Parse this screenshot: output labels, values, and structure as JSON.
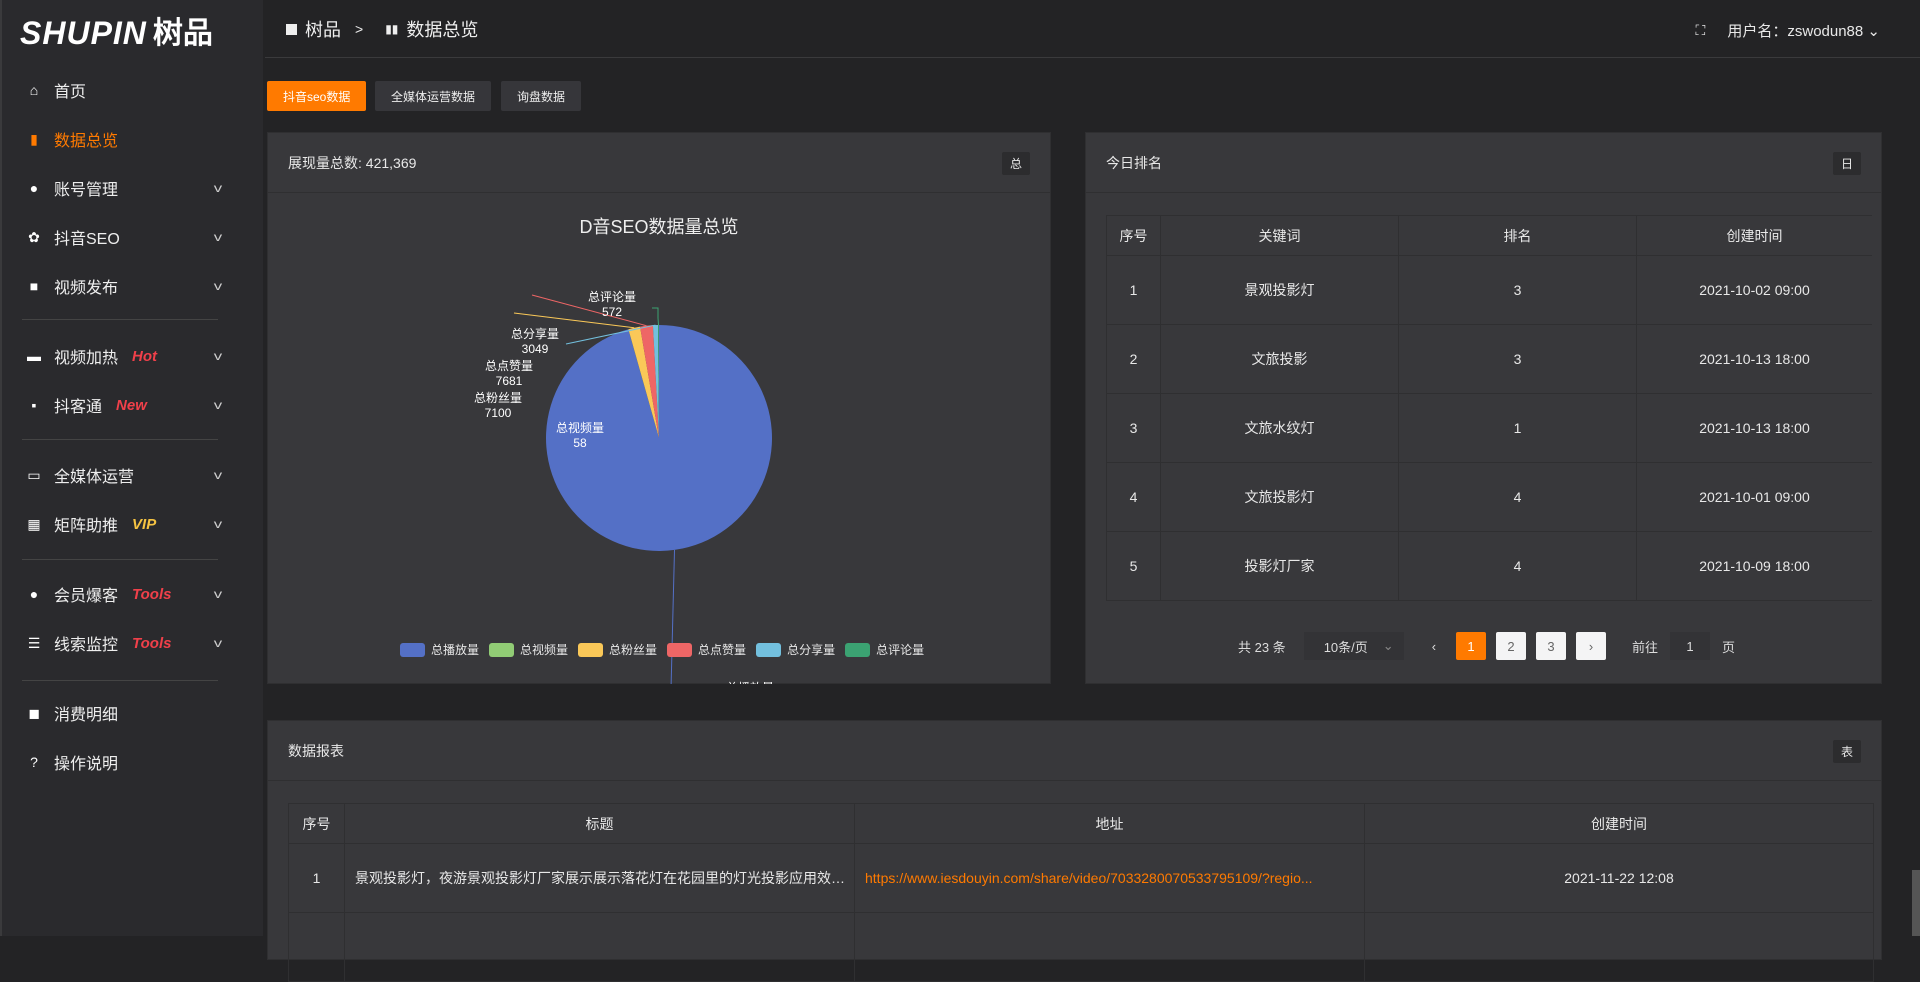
{
  "brand": {
    "logo_en": "SHUPIN",
    "logo_cn": "树品"
  },
  "sidebar": {
    "items": [
      {
        "label": "首页",
        "icon": "home-icon"
      },
      {
        "label": "数据总览",
        "icon": "bar-chart-icon",
        "active": true
      },
      {
        "label": "账号管理",
        "icon": "user-icon",
        "expand": true
      },
      {
        "label": "抖音SEO",
        "icon": "gear-icon",
        "expand": true
      },
      {
        "label": "视频发布",
        "icon": "camera-icon",
        "expand": true
      },
      {
        "label": "视频加热",
        "icon": "screen-icon",
        "badge": "Hot",
        "badge_color": "#f0404a",
        "expand": true
      },
      {
        "label": "抖客通",
        "icon": "chat-icon",
        "badge": "New",
        "badge_color": "#f0404a",
        "expand": true
      },
      {
        "label": "全媒体运营",
        "icon": "monitor-icon",
        "expand": true
      },
      {
        "label": "矩阵助推",
        "icon": "grid-icon",
        "badge": "VIP",
        "badge_color": "#f5c342",
        "expand": true
      },
      {
        "label": "会员爆客",
        "icon": "user-icon",
        "badge": "Tools",
        "badge_color": "#f0404a",
        "expand": true
      },
      {
        "label": "线索监控",
        "icon": "sliders-icon",
        "badge": "Tools",
        "badge_color": "#f0404a",
        "expand": true
      },
      {
        "label": "消费明细",
        "icon": "wallet-icon"
      },
      {
        "label": "操作说明",
        "icon": "help-icon"
      }
    ]
  },
  "header": {
    "crumb_home": "树品",
    "crumb_sep": ">",
    "crumb_current": "数据总览",
    "user_label": "用户名：zswodun88"
  },
  "tabs": [
    {
      "label": "抖音seo数据",
      "active": true
    },
    {
      "label": "全媒体运营数据"
    },
    {
      "label": "询盘数据"
    }
  ],
  "pie_card": {
    "title": "展现量总数: 421,369",
    "tag": "总"
  },
  "chart_data": {
    "type": "pie",
    "title": "D音SEO数据量总览",
    "categories": [
      "总播放量",
      "总视频量",
      "总粉丝量",
      "总点赞量",
      "总分享量",
      "总评论量"
    ],
    "values": [
      402909,
      58,
      7100,
      7681,
      3049,
      572
    ],
    "colors": [
      "#5470c6",
      "#91cc75",
      "#fac858",
      "#ee6666",
      "#73c0de",
      "#3ba272"
    ],
    "legend": "bottom"
  },
  "rank_card": {
    "title": "今日排名",
    "tag": "日",
    "columns": [
      "序号",
      "关键词",
      "排名",
      "创建时间"
    ],
    "rows": [
      [
        "1",
        "景观投影灯",
        "3",
        "2021-10-02 09:00"
      ],
      [
        "2",
        "文旅投影",
        "3",
        "2021-10-13 18:00"
      ],
      [
        "3",
        "文旅水纹灯",
        "1",
        "2021-10-13 18:00"
      ],
      [
        "4",
        "文旅投影灯",
        "4",
        "2021-10-01 09:00"
      ],
      [
        "5",
        "投影灯厂家",
        "4",
        "2021-10-09 18:00"
      ]
    ],
    "pager": {
      "total": "共 23 条",
      "page_size": "10条/页",
      "pages": [
        "1",
        "2",
        "3"
      ],
      "current": "1",
      "goto_label": "前往",
      "goto_value": "1",
      "page_unit": "页"
    }
  },
  "report_card": {
    "title": "数据报表",
    "tag": "表",
    "columns": [
      "序号",
      "标题",
      "地址",
      "创建时间"
    ],
    "rows": [
      [
        "1",
        "景观投影灯，夜游景观投影灯厂家展示展示落花灯在花园里的灯光投影应用效果 #",
        "https://www.iesdouyin.com/share/video/7033280070533795109/?regio...",
        "2021-11-22 12:08"
      ]
    ]
  }
}
